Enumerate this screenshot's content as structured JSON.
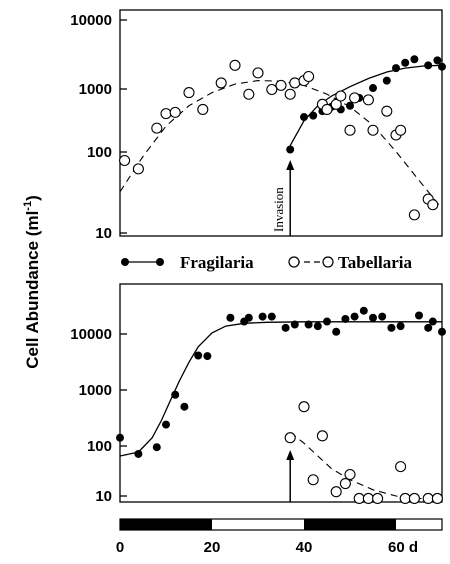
{
  "figure": {
    "ylabel": "Cell Abundance (ml",
    "ylabel_sup": "-1",
    "ylabel_close": ")"
  },
  "legend": {
    "fragilaria": "Fragilaria",
    "tabellaria": "Tabellaria"
  },
  "time_axis": {
    "ticks": [
      "0",
      "20",
      "40",
      "60 d"
    ],
    "dark_periods": [
      [
        0,
        20
      ],
      [
        40,
        60
      ]
    ],
    "xlim": [
      0,
      70
    ]
  },
  "chart_data": [
    {
      "type": "scatter",
      "scale": "log",
      "ylim": [
        10,
        10000
      ],
      "yticks": [
        "10",
        "100",
        "1000",
        "10000"
      ],
      "annotation": {
        "text": "Invasion",
        "day": 37
      },
      "series": [
        {
          "name": "Fragilaria",
          "marker": "filled",
          "points": [
            [
              37,
              150
            ],
            [
              40,
              430
            ],
            [
              42,
              450
            ],
            [
              44,
              520
            ],
            [
              46,
              600
            ],
            [
              48,
              550
            ],
            [
              50,
              620
            ],
            [
              52,
              800
            ],
            [
              55,
              1100
            ],
            [
              58,
              1400
            ],
            [
              60,
              2100
            ],
            [
              62,
              2500
            ],
            [
              64,
              2800
            ],
            [
              67,
              2300
            ],
            [
              69,
              2700
            ],
            [
              70,
              2200
            ]
          ],
          "fit": [
            [
              37,
              170
            ],
            [
              40,
              380
            ],
            [
              43,
              620
            ],
            [
              46,
              850
            ],
            [
              50,
              1150
            ],
            [
              54,
              1500
            ],
            [
              58,
              1850
            ],
            [
              62,
              2100
            ],
            [
              66,
              2250
            ],
            [
              70,
              2300
            ]
          ]
        },
        {
          "name": "Tabellaria",
          "marker": "open",
          "points": [
            [
              1,
              105
            ],
            [
              4,
              80
            ],
            [
              8,
              300
            ],
            [
              10,
              480
            ],
            [
              12,
              500
            ],
            [
              15,
              950
            ],
            [
              18,
              550
            ],
            [
              22,
              1300
            ],
            [
              25,
              2300
            ],
            [
              28,
              900
            ],
            [
              30,
              1800
            ],
            [
              33,
              1050
            ],
            [
              35,
              1200
            ],
            [
              37,
              900
            ],
            [
              38,
              1300
            ],
            [
              40,
              1400
            ],
            [
              41,
              1600
            ],
            [
              44,
              650
            ],
            [
              45,
              550
            ],
            [
              47,
              650
            ],
            [
              48,
              850
            ],
            [
              50,
              280
            ],
            [
              51,
              800
            ],
            [
              54,
              750
            ],
            [
              55,
              280
            ],
            [
              58,
              520
            ],
            [
              60,
              240
            ],
            [
              61,
              280
            ],
            [
              64,
              18
            ],
            [
              67,
              30
            ],
            [
              68,
              25
            ]
          ],
          "fit": [
            [
              0,
              38
            ],
            [
              5,
              120
            ],
            [
              10,
              320
            ],
            [
              15,
              620
            ],
            [
              20,
              950
            ],
            [
              25,
              1250
            ],
            [
              30,
              1400
            ],
            [
              35,
              1380
            ],
            [
              40,
              1200
            ],
            [
              45,
              900
            ],
            [
              50,
              600
            ],
            [
              55,
              330
            ],
            [
              60,
              140
            ],
            [
              65,
              55
            ],
            [
              70,
              22
            ]
          ]
        }
      ]
    },
    {
      "type": "scatter",
      "scale": "log",
      "ylim": [
        10,
        50000
      ],
      "yticks": [
        "10",
        "100",
        "1000",
        "10000"
      ],
      "annotation": {
        "text": "",
        "day": 37
      },
      "series": [
        {
          "name": "Fragilaria",
          "marker": "filled",
          "points": [
            [
              0,
              120
            ],
            [
              4,
              60
            ],
            [
              8,
              80
            ],
            [
              10,
              210
            ],
            [
              12,
              750
            ],
            [
              14,
              450
            ],
            [
              17,
              4000
            ],
            [
              19,
              3900
            ],
            [
              24,
              20000
            ],
            [
              27,
              17000
            ],
            [
              28,
              20000
            ],
            [
              31,
              21000
            ],
            [
              33,
              21000
            ],
            [
              36,
              13000
            ],
            [
              38,
              15000
            ],
            [
              41,
              15000
            ],
            [
              43,
              14000
            ],
            [
              45,
              17000
            ],
            [
              47,
              11000
            ],
            [
              49,
              19000
            ],
            [
              51,
              21000
            ],
            [
              53,
              27000
            ],
            [
              55,
              20000
            ],
            [
              57,
              21000
            ],
            [
              59,
              13000
            ],
            [
              61,
              14000
            ],
            [
              65,
              22000
            ],
            [
              67,
              13000
            ],
            [
              68,
              17000
            ],
            [
              70,
              11000
            ]
          ],
          "fit": [
            [
              0,
              55
            ],
            [
              4,
              65
            ],
            [
              7,
              120
            ],
            [
              9,
              250
            ],
            [
              11,
              600
            ],
            [
              13,
              1400
            ],
            [
              15,
              3000
            ],
            [
              17,
              5800
            ],
            [
              20,
              10500
            ],
            [
              23,
              14000
            ],
            [
              27,
              15800
            ],
            [
              32,
              16500
            ],
            [
              40,
              16800
            ],
            [
              50,
              16800
            ],
            [
              60,
              16800
            ],
            [
              70,
              16800
            ]
          ]
        },
        {
          "name": "Tabellaria",
          "marker": "open",
          "points": [
            [
              37,
              120
            ],
            [
              40,
              450
            ],
            [
              42,
              20
            ],
            [
              44,
              130
            ],
            [
              47,
              12
            ],
            [
              49,
              17
            ],
            [
              50,
              25
            ],
            [
              52,
              9
            ],
            [
              54,
              9
            ],
            [
              56,
              9
            ],
            [
              61,
              35
            ],
            [
              62,
              9
            ],
            [
              64,
              9
            ],
            [
              67,
              9
            ],
            [
              69,
              9
            ]
          ],
          "fit": [
            [
              37,
              150
            ],
            [
              40,
              95
            ],
            [
              43,
              55
            ],
            [
              46,
              32
            ],
            [
              50,
              20
            ],
            [
              55,
              13
            ],
            [
              60,
              10
            ],
            [
              65,
              9
            ],
            [
              70,
              9
            ]
          ]
        }
      ]
    }
  ]
}
